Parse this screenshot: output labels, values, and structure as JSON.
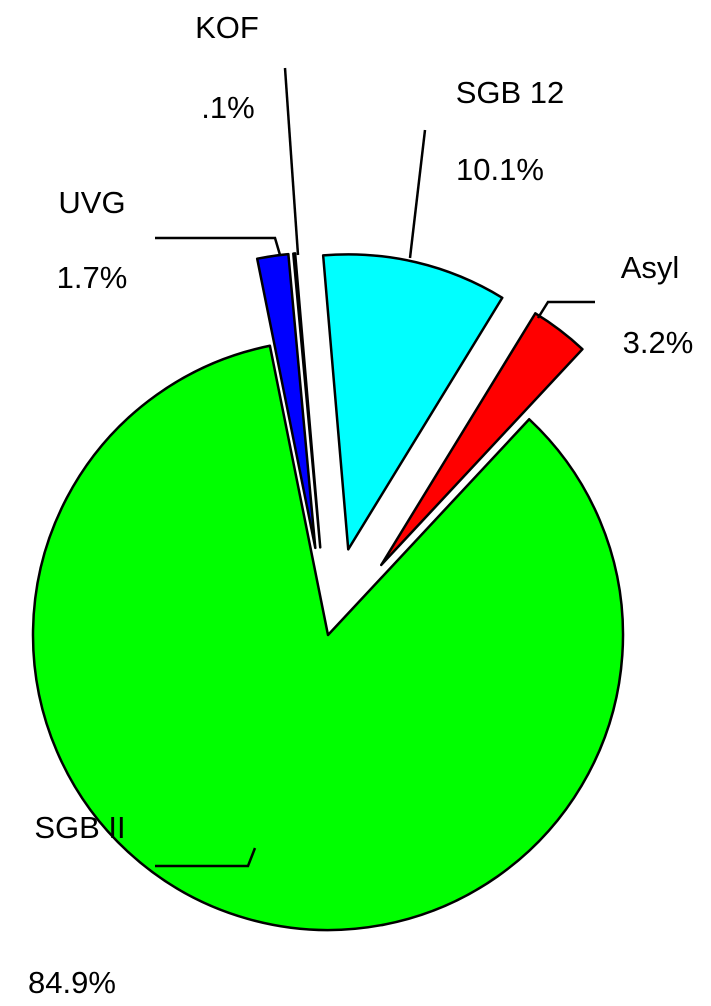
{
  "chart_data": {
    "type": "pie",
    "categories": [
      "SGB II",
      "UVG",
      "KOF",
      "SGB 12",
      "Asyl"
    ],
    "values": [
      84.9,
      1.7,
      0.1,
      10.1,
      3.2
    ],
    "value_labels": [
      "84.9%",
      "1.7%",
      ".1%",
      "10.1%",
      "3.2%"
    ],
    "colors": [
      "#00ff00",
      "#0000ff",
      "#ff00ff",
      "#00ffff",
      "#ff0000"
    ]
  }
}
